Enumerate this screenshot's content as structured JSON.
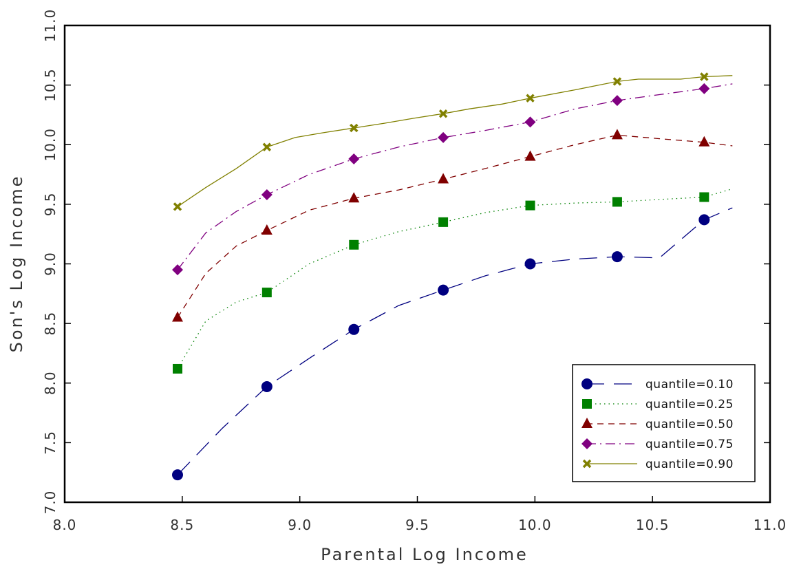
{
  "chart_data": {
    "type": "line",
    "xlabel": "Parental Log Income",
    "ylabel": "Son's Log Income",
    "xlim": [
      8.0,
      11.0
    ],
    "ylim": [
      7.0,
      11.0
    ],
    "x_ticks": [
      "8.0",
      "8.5",
      "9.0",
      "9.5",
      "10.0",
      "10.5",
      "11.0"
    ],
    "y_ticks": [
      "7.0",
      "7.5",
      "8.0",
      "8.5",
      "9.0",
      "9.5",
      "10.0",
      "10.5",
      "11.0"
    ],
    "grid": false,
    "legend_position": "bottom-right",
    "marker_x": [
      8.48,
      8.86,
      9.23,
      9.61,
      9.98,
      10.35,
      10.72
    ],
    "series": [
      {
        "name": "quantile=0.10",
        "color": "#000080",
        "marker": "circle",
        "line_style": "long-dash",
        "markers": [
          7.23,
          7.97,
          8.45,
          8.78,
          9.0,
          9.06,
          9.37
        ],
        "line": [
          [
            8.48,
            7.23
          ],
          [
            8.67,
            7.62
          ],
          [
            8.86,
            7.97
          ],
          [
            9.05,
            8.22
          ],
          [
            9.23,
            8.45
          ],
          [
            9.42,
            8.65
          ],
          [
            9.61,
            8.78
          ],
          [
            9.79,
            8.9
          ],
          [
            9.98,
            9.0
          ],
          [
            10.17,
            9.04
          ],
          [
            10.35,
            9.06
          ],
          [
            10.53,
            9.05
          ],
          [
            10.72,
            9.37
          ],
          [
            10.84,
            9.47
          ]
        ]
      },
      {
        "name": "quantile=0.25",
        "color": "#008000",
        "marker": "square",
        "line_style": "dotted",
        "markers": [
          8.12,
          8.76,
          9.16,
          9.35,
          9.49,
          9.52,
          9.56
        ],
        "line": [
          [
            8.48,
            8.12
          ],
          [
            8.6,
            8.52
          ],
          [
            8.73,
            8.68
          ],
          [
            8.86,
            8.76
          ],
          [
            9.04,
            9.0
          ],
          [
            9.23,
            9.16
          ],
          [
            9.42,
            9.27
          ],
          [
            9.61,
            9.35
          ],
          [
            9.79,
            9.43
          ],
          [
            9.98,
            9.49
          ],
          [
            10.17,
            9.51
          ],
          [
            10.35,
            9.52
          ],
          [
            10.53,
            9.54
          ],
          [
            10.72,
            9.56
          ],
          [
            10.84,
            9.63
          ]
        ]
      },
      {
        "name": "quantile=0.50",
        "color": "#800000",
        "marker": "triangle",
        "line_style": "dashed",
        "markers": [
          8.55,
          9.28,
          9.55,
          9.71,
          9.9,
          10.08,
          10.02
        ],
        "line": [
          [
            8.48,
            8.55
          ],
          [
            8.6,
            8.92
          ],
          [
            8.73,
            9.15
          ],
          [
            8.86,
            9.28
          ],
          [
            9.04,
            9.45
          ],
          [
            9.23,
            9.55
          ],
          [
            9.42,
            9.62
          ],
          [
            9.61,
            9.71
          ],
          [
            9.79,
            9.8
          ],
          [
            9.98,
            9.9
          ],
          [
            10.17,
            10.0
          ],
          [
            10.35,
            10.08
          ],
          [
            10.53,
            10.05
          ],
          [
            10.72,
            10.02
          ],
          [
            10.84,
            9.99
          ]
        ]
      },
      {
        "name": "quantile=0.75",
        "color": "#800080",
        "marker": "diamond",
        "line_style": "dash-dot",
        "markers": [
          8.95,
          9.58,
          9.88,
          10.06,
          10.19,
          10.37,
          10.47
        ],
        "line": [
          [
            8.48,
            8.95
          ],
          [
            8.6,
            9.26
          ],
          [
            8.73,
            9.44
          ],
          [
            8.86,
            9.58
          ],
          [
            9.04,
            9.75
          ],
          [
            9.23,
            9.88
          ],
          [
            9.42,
            9.98
          ],
          [
            9.61,
            10.06
          ],
          [
            9.79,
            10.12
          ],
          [
            9.98,
            10.19
          ],
          [
            10.17,
            10.3
          ],
          [
            10.35,
            10.37
          ],
          [
            10.53,
            10.42
          ],
          [
            10.72,
            10.47
          ],
          [
            10.84,
            10.51
          ]
        ]
      },
      {
        "name": "quantile=0.90",
        "color": "#808000",
        "marker": "x",
        "line_style": "solid",
        "markers": [
          9.48,
          9.98,
          10.14,
          10.26,
          10.39,
          10.53,
          10.57
        ],
        "line": [
          [
            8.48,
            9.48
          ],
          [
            8.6,
            9.64
          ],
          [
            8.73,
            9.8
          ],
          [
            8.86,
            9.98
          ],
          [
            8.98,
            10.06
          ],
          [
            9.1,
            10.1
          ],
          [
            9.23,
            10.14
          ],
          [
            9.36,
            10.18
          ],
          [
            9.48,
            10.22
          ],
          [
            9.61,
            10.26
          ],
          [
            9.72,
            10.3
          ],
          [
            9.86,
            10.34
          ],
          [
            9.98,
            10.39
          ],
          [
            10.17,
            10.46
          ],
          [
            10.35,
            10.53
          ],
          [
            10.44,
            10.55
          ],
          [
            10.62,
            10.55
          ],
          [
            10.72,
            10.57
          ],
          [
            10.84,
            10.58
          ]
        ]
      }
    ]
  }
}
